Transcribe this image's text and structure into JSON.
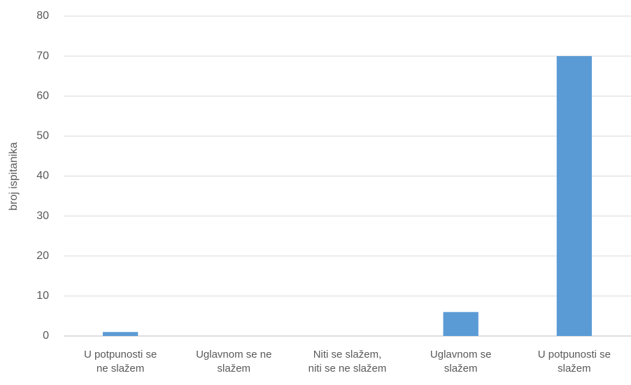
{
  "chart_data": {
    "type": "bar",
    "y_label": "broj ispitanika",
    "categories": [
      "U potpunosti se ne slažem",
      "Uglavnom se ne slažem",
      "Niti se slažem, niti se ne slažem",
      "Uglavnom se slažem",
      "U potpunosti se slažem"
    ],
    "values": [
      1,
      0,
      0,
      6,
      70
    ],
    "color": "#5b9bd5",
    "ylim": [
      0,
      80
    ],
    "yticks": [
      0,
      10,
      20,
      30,
      40,
      50,
      60,
      70,
      80
    ],
    "grid": true
  }
}
